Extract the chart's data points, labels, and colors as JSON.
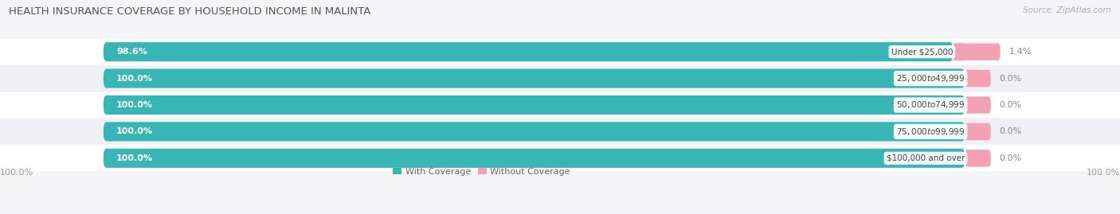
{
  "title": "HEALTH INSURANCE COVERAGE BY HOUSEHOLD INCOME IN MALINTA",
  "source": "Source: ZipAtlas.com",
  "categories": [
    "Under $25,000",
    "$25,000 to $49,999",
    "$50,000 to $74,999",
    "$75,000 to $99,999",
    "$100,000 and over"
  ],
  "with_coverage": [
    98.6,
    100.0,
    100.0,
    100.0,
    100.0
  ],
  "without_coverage": [
    1.4,
    0.0,
    0.0,
    0.0,
    0.0
  ],
  "with_coverage_labels": [
    "98.6%",
    "100.0%",
    "100.0%",
    "100.0%",
    "100.0%"
  ],
  "without_coverage_labels": [
    "1.4%",
    "0.0%",
    "0.0%",
    "0.0%",
    "0.0%"
  ],
  "color_with": "#38b6b6",
  "color_without": "#f4a0b5",
  "color_bg_bar": "#e8e8ec",
  "color_bg_row_alt": "#f5f5f8",
  "background_color": "#f5f5f8",
  "legend_with": "With Coverage",
  "legend_without": "Without Coverage",
  "x_left_label": "100.0%",
  "x_right_label": "100.0%",
  "title_fontsize": 9.5,
  "label_fontsize": 8,
  "source_fontsize": 7.5,
  "cat_label_fontsize": 7.5
}
